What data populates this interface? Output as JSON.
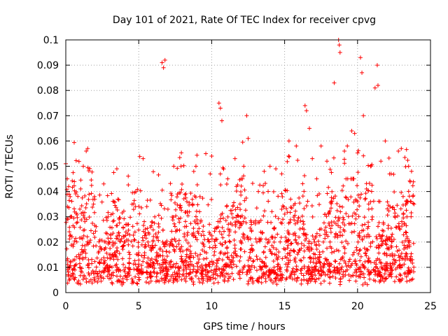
{
  "chart_data": {
    "type": "scatter",
    "title": "Day 101 of 2021, Rate Of TEC Index for receiver cpvg",
    "xlabel": "GPS time / hours",
    "ylabel": "ROTI / TECUs",
    "xlim": [
      0,
      25
    ],
    "ylim": [
      0,
      0.1
    ],
    "x_ticks": [
      0,
      5,
      10,
      15,
      20,
      25
    ],
    "x_tick_labels": [
      "0",
      "5",
      "10",
      "15",
      "20",
      "25"
    ],
    "y_ticks": [
      0,
      0.01,
      0.02,
      0.03,
      0.04,
      0.05,
      0.06,
      0.07,
      0.08,
      0.09,
      0.1
    ],
    "y_tick_labels": [
      "0",
      "0.01",
      "0.02",
      "0.03",
      "0.04",
      "0.05",
      "0.06",
      "0.07",
      "0.08",
      "0.09",
      "0.1"
    ],
    "grid": true,
    "marker": "+",
    "color": "#ff0000",
    "series": [
      {
        "name": "ROTI",
        "x": [
          0.0,
          0.1,
          0.2,
          0.3,
          0.4,
          1.2,
          1.4,
          1.5,
          2.6,
          3.5,
          5.3,
          6.6,
          6.7,
          6.8,
          7.4,
          7.9,
          9.6,
          10.0,
          10.5,
          10.6,
          10.7,
          11.6,
          12.2,
          12.4,
          12.5,
          14.0,
          15.3,
          15.8,
          16.4,
          16.5,
          16.7,
          17.5,
          18.4,
          18.7,
          18.75,
          18.8,
          19.6,
          19.8,
          20.2,
          20.3,
          20.4,
          21.2,
          21.35,
          21.4,
          21.6,
          22.8,
          23.5,
          1.9,
          2.9,
          3.3,
          4.0,
          5.9,
          6.1,
          7.0,
          8.3,
          8.7,
          9.2,
          9.9,
          11.1,
          11.7,
          13.2,
          13.6,
          14.4,
          14.8,
          16.9,
          17.2,
          17.9,
          19.1,
          19.3,
          20.9,
          21.9,
          22.3,
          23.0,
          23.7
        ],
        "y": [
          0.051,
          0.045,
          0.042,
          0.038,
          0.03,
          0.05,
          0.056,
          0.057,
          0.043,
          0.049,
          0.053,
          0.091,
          0.089,
          0.092,
          0.05,
          0.05,
          0.055,
          0.054,
          0.075,
          0.073,
          0.068,
          0.053,
          0.05,
          0.07,
          0.061,
          0.05,
          0.06,
          0.058,
          0.074,
          0.072,
          0.065,
          0.058,
          0.083,
          0.1,
          0.098,
          0.095,
          0.064,
          0.063,
          0.093,
          0.087,
          0.07,
          0.081,
          0.09,
          0.082,
          0.052,
          0.056,
          0.05,
          0.035,
          0.03,
          0.036,
          0.02,
          0.028,
          0.03,
          0.033,
          0.036,
          0.035,
          0.038,
          0.047,
          0.045,
          0.042,
          0.04,
          0.048,
          0.049,
          0.047,
          0.053,
          0.045,
          0.052,
          0.056,
          0.058,
          0.05,
          0.06,
          0.047,
          0.057,
          0.048
        ]
      }
    ],
    "background_density": {
      "description": "dense band of ROTI values across the whole day",
      "y_floor": 0.003,
      "y_core_mean": 0.011,
      "y_core_spread": 0.006
    }
  }
}
